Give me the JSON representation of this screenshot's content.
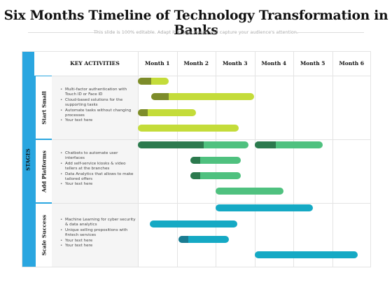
{
  "title": "Six Months Timeline of Technology Transformation in Banks",
  "subtitle": "This slide is 100% editable. Adapt it to your needs and capture your audience's attention.",
  "stages_label": "STAGES",
  "key_activities_header": "KEY ACTIVITIES",
  "months": [
    "Month 1",
    "Month 2",
    "Month 3",
    "Month 4",
    "Month 5",
    "Month 6"
  ],
  "colors": {
    "accent_blue": "#2aa6e0",
    "lime": "#c4dc3a",
    "olive": "#7d8c2a",
    "green": "#4fc17f",
    "dark_green": "#2c7a4e",
    "teal": "#15a9c4",
    "dark_teal": "#1a7c92"
  },
  "stages": [
    {
      "name": "Start Small",
      "activities": [
        "Multi-factor authentication with Touch ID or Face ID",
        "Cloud-based solutions for the supporting tasks",
        "Automate tasks without changing processes",
        "Your text here"
      ],
      "bars": [
        {
          "start": 0.0,
          "end": 0.8,
          "dark_end": 0.35,
          "color": "lime",
          "dark_color": "olive"
        },
        {
          "start": 0.35,
          "end": 3.0,
          "dark_end": 0.8,
          "color": "lime",
          "dark_color": "olive"
        },
        {
          "start": 0.0,
          "end": 1.5,
          "dark_end": 0.25,
          "color": "lime",
          "dark_color": "olive"
        },
        {
          "start": 0.0,
          "end": 2.6,
          "dark_end": 0.0,
          "color": "lime",
          "dark_color": "olive"
        }
      ]
    },
    {
      "name": "Add Platforms",
      "activities": [
        "Chatbots to automate user interfaces",
        "Add self-service kiosks & video tellers at the branches",
        "Data Analytics that allows to make tailored offers",
        "Your text here"
      ],
      "bars": [
        {
          "start": 0.0,
          "end": 2.85,
          "dark_end": 1.7,
          "color": "green",
          "dark_color": "dark_green"
        },
        {
          "start": 3.0,
          "end": 4.75,
          "dark_end": 3.55,
          "color": "green",
          "dark_color": "dark_green"
        },
        {
          "start": 1.35,
          "end": 2.65,
          "dark_end": 1.6,
          "color": "green",
          "dark_color": "dark_green"
        },
        {
          "start": 1.35,
          "end": 2.65,
          "dark_end": 1.6,
          "color": "green",
          "dark_color": "dark_green"
        },
        {
          "start": 2.0,
          "end": 3.75,
          "dark_end": 0.0,
          "color": "green",
          "dark_color": "dark_green"
        }
      ]
    },
    {
      "name": "Scale Success",
      "activities": [
        "Machine Learning for cyber security & data analytics",
        "Unique selling propositions with fintech services",
        "Your text here",
        "Your text here"
      ],
      "bars": [
        {
          "start": 2.0,
          "end": 4.5,
          "dark_end": 0.0,
          "color": "teal",
          "dark_color": "dark_teal"
        },
        {
          "start": 0.3,
          "end": 2.55,
          "dark_end": 0.0,
          "color": "teal",
          "dark_color": "dark_teal"
        },
        {
          "start": 1.05,
          "end": 2.35,
          "dark_end": 1.3,
          "color": "teal",
          "dark_color": "dark_teal"
        },
        {
          "start": 3.0,
          "end": 5.65,
          "dark_end": 0.0,
          "color": "teal",
          "dark_color": "dark_teal"
        }
      ]
    }
  ]
}
